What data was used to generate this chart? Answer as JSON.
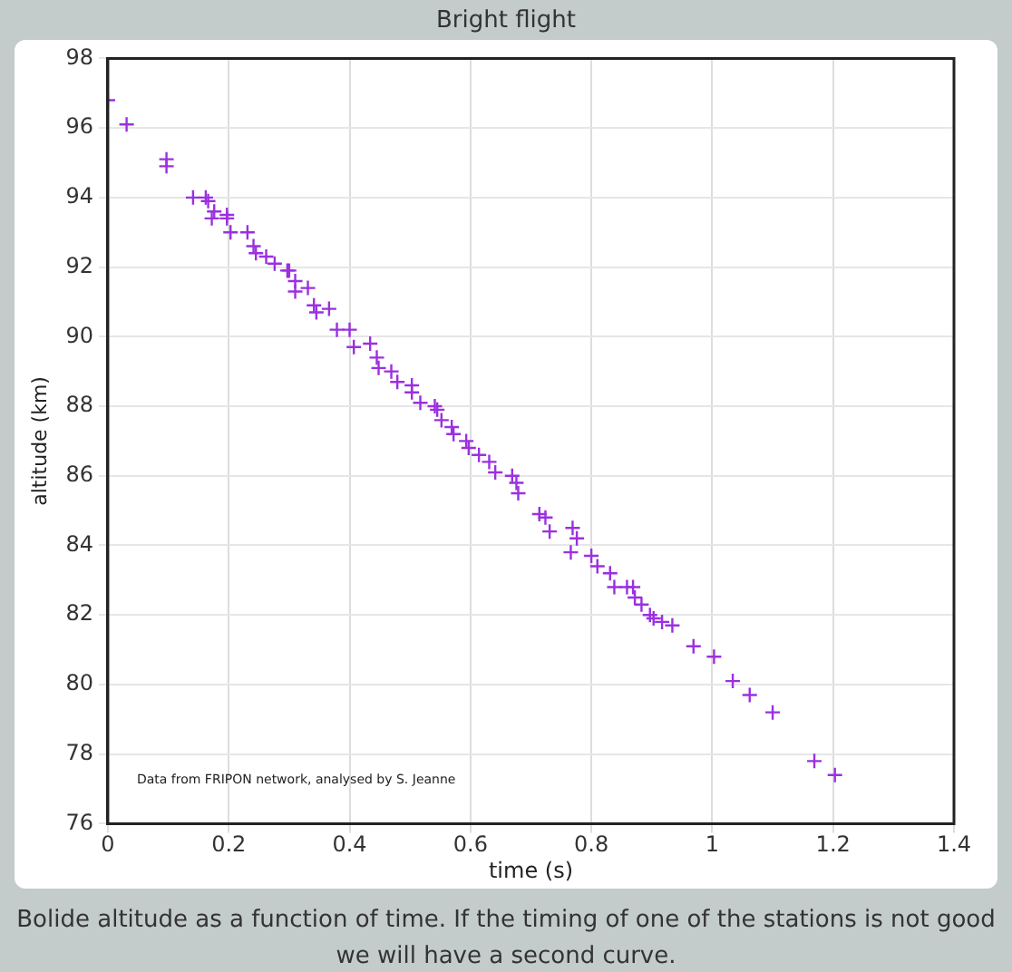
{
  "chart_data": {
    "type": "scatter",
    "title": "Bright flight",
    "xlabel": "time (s)",
    "ylabel": "altitude (km)",
    "annotations": [
      "Data from FRIPON network, analysed by S. Jeanne",
      "Bolide altitude as a function of time. If the timing of one of the stations is not good we will have a second curve."
    ],
    "x": [
      0,
      0.031,
      0.097,
      0.097,
      0.141,
      0.162,
      0.166,
      0.176,
      0.172,
      0.197,
      0.197,
      0.203,
      0.231,
      0.241,
      0.245,
      0.262,
      0.276,
      0.297,
      0.3,
      0.31,
      0.31,
      0.331,
      0.341,
      0.345,
      0.366,
      0.379,
      0.4,
      0.407,
      0.434,
      0.445,
      0.448,
      0.469,
      0.479,
      0.503,
      0.503,
      0.517,
      0.541,
      0.545,
      0.552,
      0.569,
      0.572,
      0.593,
      0.597,
      0.614,
      0.631,
      0.641,
      0.669,
      0.676,
      0.679,
      0.714,
      0.724,
      0.731,
      0.769,
      0.776,
      0.766,
      0.8,
      0.81,
      0.831,
      0.838,
      0.859,
      0.869,
      0.872,
      0.883,
      0.897,
      0.903,
      0.917,
      0.934,
      0.969,
      1.003,
      1.034,
      1.062,
      1.1,
      1.169,
      1.203
    ],
    "series": [
      {
        "color": "#9b30e0",
        "values": [
          96.8,
          96.1,
          95.1,
          94.9,
          94.0,
          94.0,
          93.9,
          93.6,
          93.4,
          93.5,
          93.4,
          93.0,
          93.0,
          92.6,
          92.4,
          92.3,
          92.1,
          91.9,
          91.9,
          91.6,
          91.3,
          91.4,
          90.9,
          90.7,
          90.8,
          90.2,
          90.2,
          89.7,
          89.8,
          89.4,
          89.1,
          89.0,
          88.7,
          88.6,
          88.4,
          88.1,
          88.0,
          87.9,
          87.6,
          87.4,
          87.2,
          87.0,
          86.8,
          86.6,
          86.4,
          86.1,
          86.0,
          85.8,
          85.5,
          84.9,
          84.8,
          84.4,
          84.5,
          84.2,
          83.8,
          83.7,
          83.4,
          83.2,
          82.8,
          82.8,
          82.8,
          82.5,
          82.3,
          82.0,
          81.9,
          81.8,
          81.7,
          81.1,
          80.8,
          80.1,
          79.7,
          79.2,
          77.8,
          77.4
        ]
      }
    ],
    "xlim": [
      0,
      1.4
    ],
    "xticks": [
      0,
      0.2,
      0.4,
      0.6,
      0.8,
      1,
      1.2,
      1.4
    ],
    "ylim": [
      76,
      98
    ],
    "yticks": [
      76,
      78,
      80,
      82,
      84,
      86,
      88,
      90,
      92,
      94,
      96,
      98
    ],
    "grid": true,
    "marker": "cross"
  }
}
